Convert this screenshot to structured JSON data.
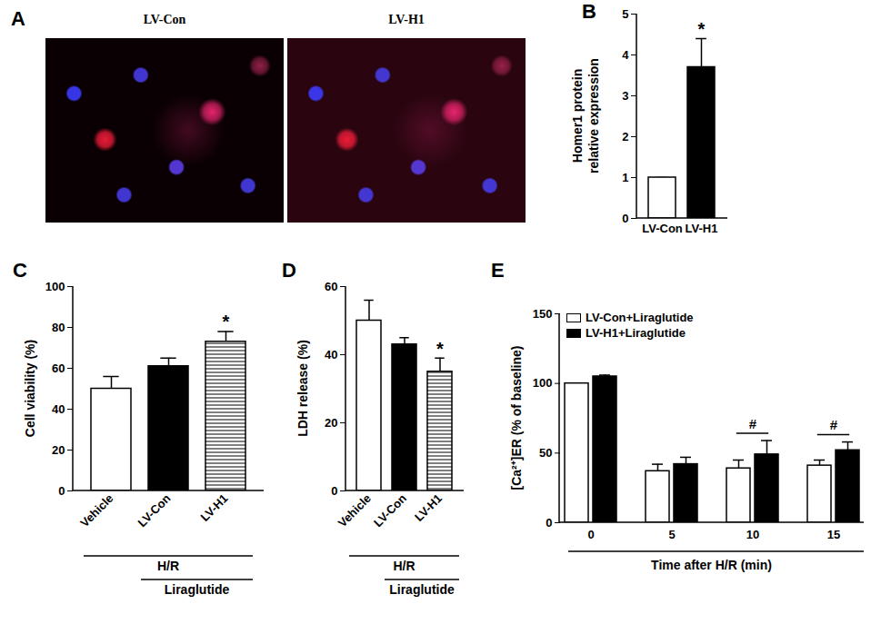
{
  "chart_data": [
    {
      "type": "image",
      "panel": "A",
      "categories": [
        "LV-Con",
        "LV-H1"
      ]
    },
    {
      "type": "bar",
      "panel": "B",
      "categories": [
        "LV-Con",
        "LV-H1"
      ],
      "values": [
        1,
        3.7
      ],
      "errors": [
        0,
        0.7
      ],
      "colors": [
        "#ffffff",
        "#000000"
      ],
      "y_label": "Homer1 protein\nrelative expression",
      "ylim": [
        0,
        5
      ],
      "yticks": [
        0,
        1,
        2,
        3,
        4,
        5
      ],
      "annotations": [
        {
          "category": "LV-H1",
          "text": "*"
        }
      ]
    },
    {
      "type": "bar",
      "panel": "C",
      "categories": [
        "Vehicle",
        "LV-Con",
        "LV-H1"
      ],
      "values": [
        50,
        61,
        73
      ],
      "errors": [
        6,
        4,
        5
      ],
      "colors": [
        "#ffffff",
        "#000000",
        "hatch"
      ],
      "y_label": "Cell viability (%)",
      "ylim": [
        0,
        100
      ],
      "yticks": [
        0,
        20,
        40,
        60,
        80,
        100
      ],
      "annotations": [
        {
          "category": "LV-H1",
          "text": "*"
        }
      ],
      "groups": [
        {
          "text": "H/R",
          "categories": [
            "Vehicle",
            "LV-Con",
            "LV-H1"
          ]
        },
        {
          "text": "Liraglutide",
          "categories": [
            "LV-Con",
            "LV-H1"
          ]
        }
      ]
    },
    {
      "type": "bar",
      "panel": "D",
      "categories": [
        "Vehicle",
        "LV-Con",
        "LV-H1"
      ],
      "values": [
        50,
        43,
        35
      ],
      "errors": [
        6,
        2,
        4
      ],
      "colors": [
        "#ffffff",
        "#000000",
        "hatch"
      ],
      "y_label": "LDH release (%)",
      "ylim": [
        0,
        60
      ],
      "yticks": [
        0,
        20,
        40,
        60
      ],
      "annotations": [
        {
          "category": "LV-H1",
          "text": "*"
        }
      ],
      "groups": [
        {
          "text": "H/R",
          "categories": [
            "Vehicle",
            "LV-Con",
            "LV-H1"
          ]
        },
        {
          "text": "Liraglutide",
          "categories": [
            "LV-Con",
            "LV-H1"
          ]
        }
      ]
    },
    {
      "type": "grouped_bar",
      "panel": "E",
      "categories": [
        "0",
        "5",
        "10",
        "15"
      ],
      "series": [
        {
          "name": "LV-Con+Liraglutide",
          "color": "#ffffff",
          "values": [
            100,
            37,
            39,
            41
          ],
          "errors": [
            0,
            5,
            6,
            4
          ]
        },
        {
          "name": "LV-H1+Liraglutide",
          "color": "#000000",
          "values": [
            105,
            42,
            49,
            52
          ],
          "errors": [
            1,
            5,
            10,
            6
          ]
        }
      ],
      "x_label": "Time after H/R (min)",
      "y_label": "[Ca²⁺]ER (% of baseline)",
      "ylim": [
        0,
        150
      ],
      "yticks": [
        0,
        50,
        100,
        150
      ],
      "legend": "top-left",
      "annotations": [
        {
          "category": "10",
          "text": "#"
        },
        {
          "category": "15",
          "text": "#"
        }
      ]
    }
  ]
}
